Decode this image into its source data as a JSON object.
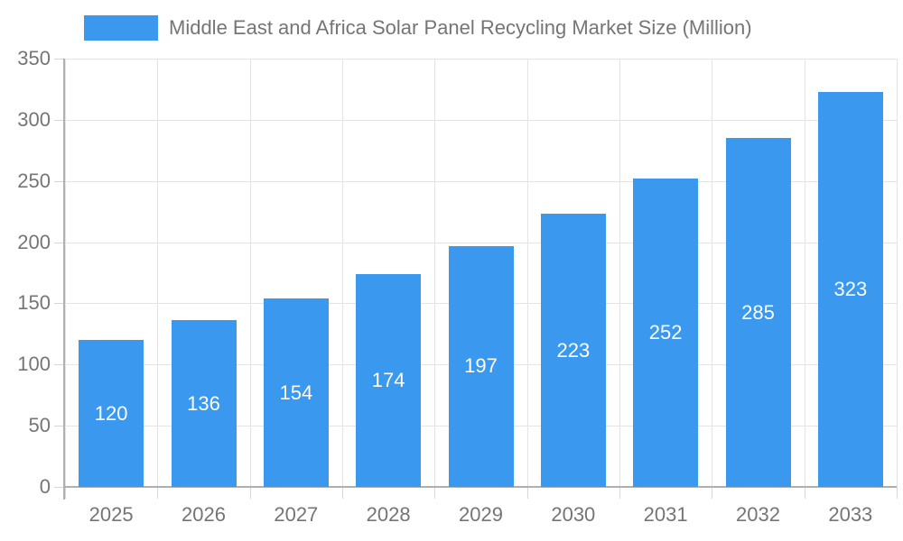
{
  "chart_data": {
    "type": "bar",
    "title": "Middle East and Africa Solar Panel Recycling Market Size (Million)",
    "legend_entries": [
      "Middle East and Africa Solar Panel Recycling Market Size (Million)"
    ],
    "legend_position": "top-left",
    "categories": [
      "2025",
      "2026",
      "2027",
      "2028",
      "2029",
      "2030",
      "2031",
      "2032",
      "2033"
    ],
    "values": [
      120,
      136,
      154,
      174,
      197,
      223,
      252,
      285,
      323
    ],
    "value_labels_shown": true,
    "xlabel": "",
    "ylabel": "",
    "ylim": [
      0,
      350
    ],
    "yticks": [
      0,
      50,
      100,
      150,
      200,
      250,
      300,
      350
    ],
    "grid": true,
    "colors": {
      "bar": "#3a99ee",
      "axis_text": "#757575",
      "grid": "#e4e4e4",
      "tick": "#d6d6d6",
      "axis_line": "#b0b0b0",
      "value_label": "#ffffff",
      "background": "#ffffff"
    }
  }
}
